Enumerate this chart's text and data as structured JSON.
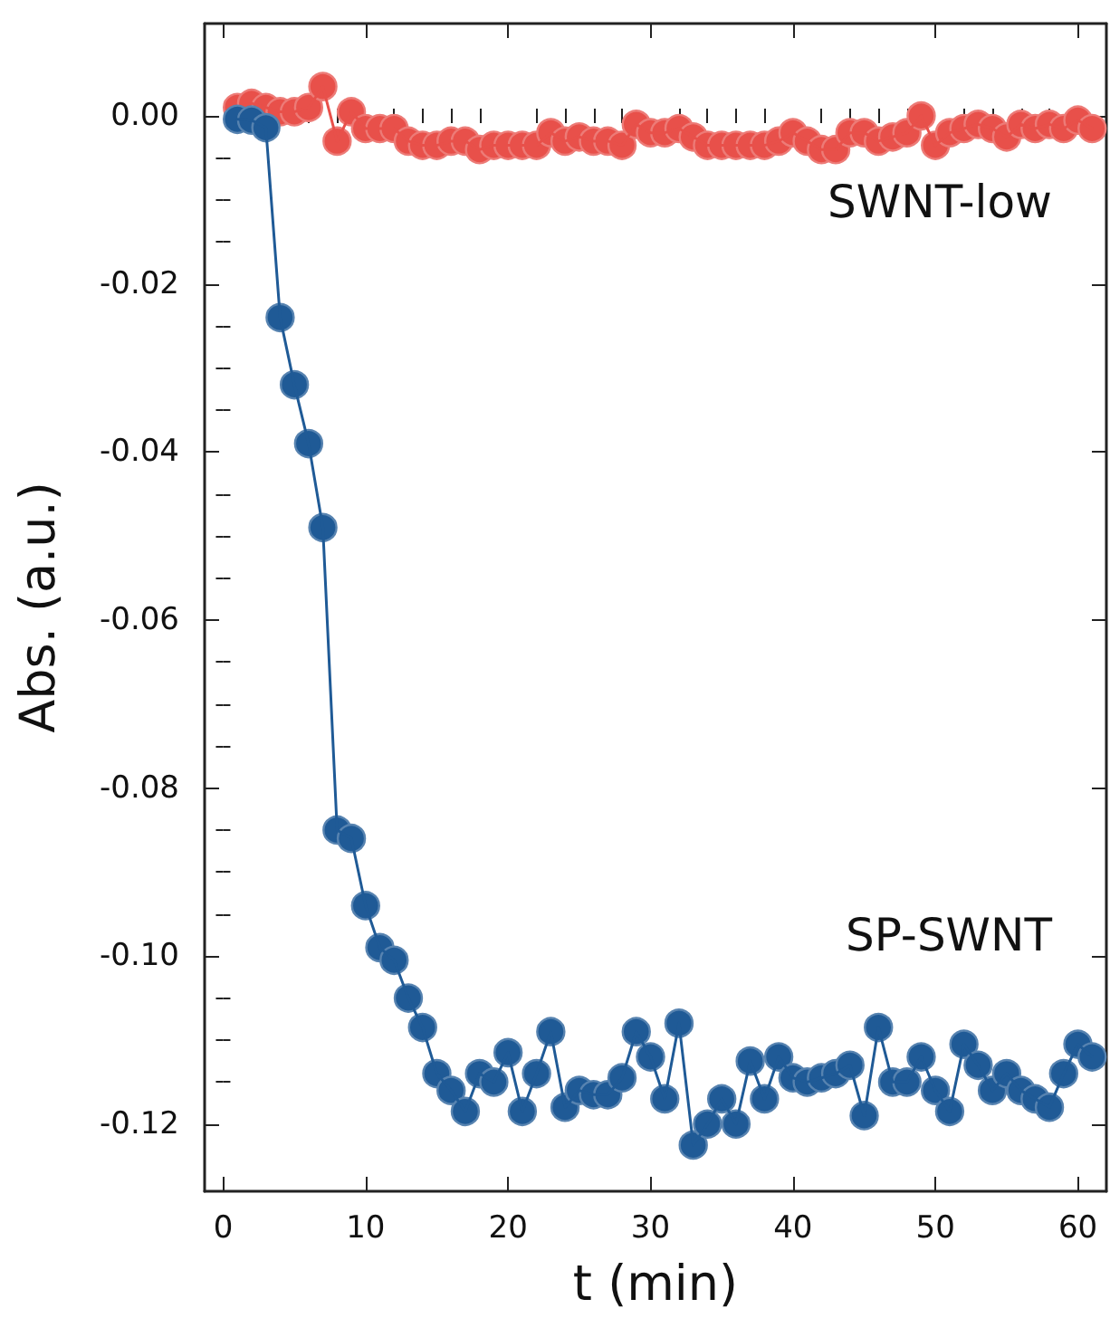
{
  "chart_data": {
    "type": "line",
    "xlabel": "t (min)",
    "ylabel": "Abs. (a.u.)",
    "xlim": [
      -1.3,
      62
    ],
    "ylim": [
      -0.128,
      0.011
    ],
    "xticks": [
      0,
      10,
      20,
      30,
      40,
      50,
      60
    ],
    "yticks": [
      {
        "value": 0,
        "label": "0.00"
      },
      {
        "value": -0.02,
        "label": "-0.02"
      },
      {
        "value": -0.04,
        "label": "-0.04"
      },
      {
        "value": -0.06,
        "label": "-0.06"
      },
      {
        "value": -0.08,
        "label": "-0.08"
      },
      {
        "value": -0.1,
        "label": "-0.10"
      },
      {
        "value": -0.12,
        "label": "-0.12"
      }
    ],
    "marker": "circle",
    "line_style": "solid",
    "grid": false,
    "legend": false,
    "x": [
      1,
      2,
      3,
      4,
      5,
      6,
      7,
      8,
      9,
      10,
      11,
      12,
      13,
      14,
      15,
      16,
      17,
      18,
      19,
      20,
      21,
      22,
      23,
      24,
      25,
      26,
      27,
      28,
      29,
      30,
      31,
      32,
      33,
      34,
      35,
      36,
      37,
      38,
      39,
      40,
      41,
      42,
      43,
      44,
      45,
      46,
      47,
      48,
      49,
      50,
      51,
      52,
      53,
      54,
      55,
      56,
      57,
      58,
      59,
      60,
      61
    ],
    "series": [
      {
        "name": "SWNT-low",
        "color": "#e8504a",
        "values": [
          0.001,
          0.0015,
          0.001,
          0.0005,
          0.0005,
          0.001,
          0.0035,
          -0.003,
          0.0005,
          -0.0015,
          -0.0015,
          -0.0015,
          -0.003,
          -0.0035,
          -0.0035,
          -0.003,
          -0.003,
          -0.004,
          -0.0035,
          -0.0035,
          -0.0035,
          -0.0035,
          -0.002,
          -0.003,
          -0.0025,
          -0.003,
          -0.003,
          -0.0035,
          -0.001,
          -0.002,
          -0.002,
          -0.0015,
          -0.0025,
          -0.0035,
          -0.0035,
          -0.0035,
          -0.0035,
          -0.0035,
          -0.003,
          -0.002,
          -0.003,
          -0.004,
          -0.004,
          -0.002,
          -0.002,
          -0.003,
          -0.0025,
          -0.002,
          0.0,
          -0.0035,
          -0.002,
          -0.0015,
          -0.001,
          -0.0015,
          -0.0025,
          -0.001,
          -0.0015,
          -0.001,
          -0.0015,
          -0.0005,
          -0.0015
        ]
      },
      {
        "name": "SP-SWNT",
        "color": "#1f5a96",
        "values": [
          -0.0004,
          -0.0005,
          -0.0014,
          -0.024,
          -0.032,
          -0.039,
          -0.049,
          -0.085,
          -0.086,
          -0.094,
          -0.099,
          -0.1005,
          -0.105,
          -0.1085,
          -0.114,
          -0.116,
          -0.1185,
          -0.114,
          -0.115,
          -0.1115,
          -0.1185,
          -0.114,
          -0.109,
          -0.118,
          -0.116,
          -0.1165,
          -0.1165,
          -0.1145,
          -0.109,
          -0.112,
          -0.117,
          -0.108,
          -0.1225,
          -0.12,
          -0.117,
          -0.12,
          -0.1125,
          -0.117,
          -0.112,
          -0.1145,
          -0.115,
          -0.1145,
          -0.114,
          -0.113,
          -0.119,
          -0.1085,
          -0.115,
          -0.115,
          -0.112,
          -0.116,
          -0.1185,
          -0.1105,
          -0.113,
          -0.116,
          -0.114,
          -0.116,
          -0.117,
          -0.118,
          -0.114,
          -0.1105,
          -0.112
        ]
      }
    ]
  }
}
